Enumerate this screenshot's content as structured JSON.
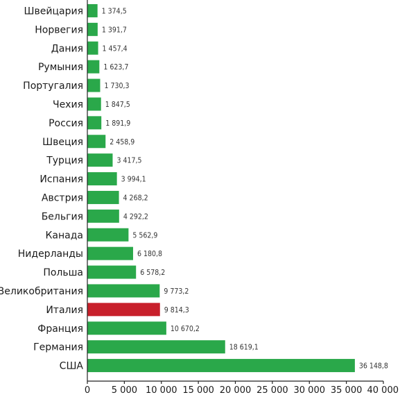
{
  "chart_data": {
    "type": "bar",
    "orientation": "horizontal",
    "title": "",
    "xlabel": "",
    "ylabel": "",
    "categories": [
      "Швейцария",
      "Норвегия",
      "Дания",
      "Румыния",
      "Португалия",
      "Чехия",
      "Россия",
      "Швеция",
      "Турция",
      "Испания",
      "Австрия",
      "Бельгия",
      "Канада",
      "Нидерланды",
      "Польша",
      "Великобритания",
      "Италия",
      "Франция",
      "Германия",
      "США"
    ],
    "values": [
      1374.5,
      1391.7,
      1457.4,
      1623.7,
      1730.3,
      1847.5,
      1891.9,
      2458.9,
      3417.5,
      3994.1,
      4268.2,
      4292.2,
      5562.9,
      6180.8,
      6578.2,
      9773.2,
      9814.3,
      10670.2,
      18619.1,
      36148.8
    ],
    "value_labels": [
      "1 374,5",
      "1 391,7",
      "1 457,4",
      "1 623,7",
      "1 730,3",
      "1 847,5",
      "1 891,9",
      "2 458,9",
      "3 417,5",
      "3 994,1",
      "4 268,2",
      "4 292,2",
      "5 562,9",
      "6 180,8",
      "6 578,2",
      "9 773,2",
      "9 814,3",
      "10 670,2",
      "18 619,1",
      "36 148,8"
    ],
    "highlight_index": 16,
    "xlim": [
      0,
      40000
    ],
    "x_ticks": [
      0,
      5000,
      10000,
      15000,
      20000,
      25000,
      30000,
      35000,
      40000
    ],
    "x_tick_labels": [
      "0",
      "5 000",
      "10 000",
      "15 000",
      "20 000",
      "25 000",
      "30 000",
      "35 000",
      "40 000"
    ],
    "grid": false,
    "legend": "none",
    "colors": {
      "bar": "#2aa84a",
      "highlight": "#c8202b",
      "axis": "#222222"
    }
  }
}
